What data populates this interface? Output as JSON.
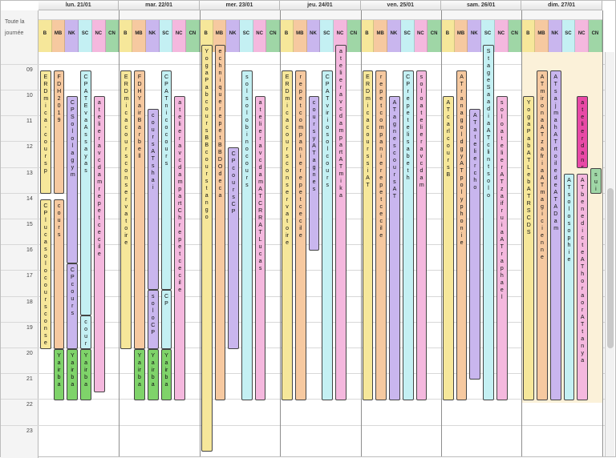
{
  "all_day_label": "Toute la journée",
  "days": [
    "lun. 21/01",
    "mar. 22/01",
    "mer. 23/01",
    "jeu. 24/01",
    "ven. 25/01",
    "sam. 26/01",
    "dim. 27/01"
  ],
  "columns": [
    "B",
    "MB",
    "NK",
    "SC",
    "NC",
    "CN"
  ],
  "column_colors": {
    "B": "#f6e79a",
    "MB": "#f6c9a0",
    "NK": "#c9b6ee",
    "SC": "#c4f0f3",
    "NC": "#f4b8de",
    "CN": "#9fd6a6"
  },
  "hours": [
    "09",
    "10",
    "11",
    "12",
    "13",
    "14",
    "15",
    "16",
    "17",
    "18",
    "19",
    "20",
    "21",
    "22",
    "23"
  ],
  "events": [
    {
      "day": 0,
      "col": 0,
      "start": 9.0,
      "end": 13.8,
      "label": "ERD mica - cours p",
      "color": "#f6e79a"
    },
    {
      "day": 0,
      "col": 1,
      "start": 9.0,
      "end": 13.8,
      "label": "FDH 2019",
      "color": "#f6c9a0"
    },
    {
      "day": 0,
      "col": 2,
      "start": 10.0,
      "end": 16.5,
      "label": "CP Solo la gym",
      "color": "#c9b6ee"
    },
    {
      "day": 0,
      "col": 3,
      "start": 9.0,
      "end": 18.5,
      "label": "CP AT Eva Assayas",
      "color": "#c4f0f3"
    },
    {
      "day": 0,
      "col": 4,
      "start": 10.0,
      "end": 21.5,
      "label": "atelier avc dam repet cecile",
      "color": "#f4b8de"
    },
    {
      "day": 0,
      "col": 0,
      "start": 14.0,
      "end": 19.8,
      "label": "CP luca solo cours conservatoire",
      "color": "#f6e79a"
    },
    {
      "day": 0,
      "col": 1,
      "start": 14.0,
      "end": 19.8,
      "label": "cours",
      "color": "#f6c9a0"
    },
    {
      "day": 0,
      "col": 2,
      "start": 16.5,
      "end": 19.8,
      "label": "CP cours",
      "color": "#c9b6ee"
    },
    {
      "day": 0,
      "col": 3,
      "start": 18.5,
      "end": 19.8,
      "label": "cours",
      "color": "#c4f0f3"
    },
    {
      "day": 0,
      "col": 1,
      "start": 19.8,
      "end": 21.8,
      "label": "Yair ba",
      "color": "#7fd36a"
    },
    {
      "day": 0,
      "col": 2,
      "start": 19.8,
      "end": 21.8,
      "label": "Yair ba",
      "color": "#7fd36a"
    },
    {
      "day": 0,
      "col": 3,
      "start": 19.8,
      "end": 21.8,
      "label": "Yair ba",
      "color": "#7fd36a"
    },
    {
      "day": 1,
      "col": 0,
      "start": 9.0,
      "end": 19.8,
      "label": "ERD mica cours conservatoire",
      "color": "#f6e79a"
    },
    {
      "day": 1,
      "col": 1,
      "start": 9.0,
      "end": 19.8,
      "label": "FDH Yair Barbell",
      "color": "#f6c9a0"
    },
    {
      "day": 1,
      "col": 2,
      "start": 10.5,
      "end": 17.5,
      "label": "cours AT shai",
      "color": "#c9b6ee"
    },
    {
      "day": 1,
      "col": 3,
      "start": 9.0,
      "end": 17.5,
      "label": "CP AT nico cours",
      "color": "#c4f0f3"
    },
    {
      "day": 1,
      "col": 4,
      "start": 10.0,
      "end": 21.8,
      "label": "atelier avc dam part Ch repet cecile",
      "color": "#f4b8de"
    },
    {
      "day": 1,
      "col": 2,
      "start": 17.5,
      "end": 19.8,
      "label": "solo CP",
      "color": "#c9b6ee"
    },
    {
      "day": 1,
      "col": 3,
      "start": 17.5,
      "end": 19.8,
      "label": "CP",
      "color": "#c4f0f3"
    },
    {
      "day": 1,
      "col": 1,
      "start": 19.8,
      "end": 21.8,
      "label": "Yair ba",
      "color": "#7fd36a"
    },
    {
      "day": 1,
      "col": 2,
      "start": 19.8,
      "end": 21.8,
      "label": "Yair ba",
      "color": "#7fd36a"
    },
    {
      "day": 1,
      "col": 3,
      "start": 19.8,
      "end": 21.8,
      "label": "Yair ba",
      "color": "#7fd36a"
    },
    {
      "day": 2,
      "col": 0,
      "start": 8.0,
      "end": 23.8,
      "label": "Yoga Pab cours BB cours tango",
      "color": "#f6e79a"
    },
    {
      "day": 2,
      "col": 1,
      "start": 8.0,
      "end": 21.8,
      "label": "echnique repet BBDO de ca",
      "color": "#f6c9a0"
    },
    {
      "day": 2,
      "col": 2,
      "start": 12.0,
      "end": 19.8,
      "label": "CP cours CP",
      "color": "#c9b6ee"
    },
    {
      "day": 2,
      "col": 3,
      "start": 9.0,
      "end": 21.8,
      "label": "sol solo bino cours",
      "color": "#c4f0f3"
    },
    {
      "day": 2,
      "col": 4,
      "start": 10.0,
      "end": 21.8,
      "label": "atelier avc dam AT CRR AT Lucas",
      "color": "#f4b8de"
    },
    {
      "day": 3,
      "col": 0,
      "start": 9.0,
      "end": 21.8,
      "label": "ERD mica cours conservatoire",
      "color": "#f6e79a"
    },
    {
      "day": 3,
      "col": 1,
      "start": 9.0,
      "end": 21.8,
      "label": "repet companie repet cecile",
      "color": "#f6c9a0"
    },
    {
      "day": 3,
      "col": 2,
      "start": 10.0,
      "end": 16.0,
      "label": "cours y AT agnes",
      "color": "#c9b6ee"
    },
    {
      "day": 3,
      "col": 3,
      "start": 9.0,
      "end": 21.8,
      "label": "CP AT virio sol cours",
      "color": "#c4f0f3"
    },
    {
      "day": 3,
      "col": 4,
      "start": 8.0,
      "end": 21.8,
      "label": "atelier avc dam part AT mika",
      "color": "#f4b8de"
    },
    {
      "day": 4,
      "col": 0,
      "start": 9.0,
      "end": 21.8,
      "label": "ERD mica cours si AT",
      "color": "#f6e79a"
    },
    {
      "day": 4,
      "col": 1,
      "start": 9.0,
      "end": 21.8,
      "label": "repet companie repet cecile",
      "color": "#f6c9a0"
    },
    {
      "day": 4,
      "col": 2,
      "start": 10.0,
      "end": 21.8,
      "label": "AT agnes cours AT",
      "color": "#c9b6ee"
    },
    {
      "day": 4,
      "col": 3,
      "start": 9.0,
      "end": 21.8,
      "label": "CP repet elisabeth",
      "color": "#c4f0f3"
    },
    {
      "day": 4,
      "col": 4,
      "start": 9.0,
      "end": 21.8,
      "label": "solo atelier avc dam",
      "color": "#f4b8de"
    },
    {
      "day": 5,
      "col": 0,
      "start": 10.0,
      "end": 21.8,
      "label": "AT carl cours B",
      "color": "#f6e79a"
    },
    {
      "day": 5,
      "col": 1,
      "start": 9.0,
      "end": 21.8,
      "label": "AT rana goldgy AT polyphonie",
      "color": "#f6c9a0"
    },
    {
      "day": 5,
      "col": 2,
      "start": 10.5,
      "end": 21.0,
      "label": "AT atelier cho",
      "color": "#c9b6ee"
    },
    {
      "day": 5,
      "col": 3,
      "start": 8.0,
      "end": 21.8,
      "label": "Stage Saadia AT clint solo",
      "color": "#c4f0f3"
    },
    {
      "day": 5,
      "col": 4,
      "start": 10.0,
      "end": 21.8,
      "label": "solo atelier AT zaifruia AT raphael",
      "color": "#f4b8de"
    },
    {
      "day": 6,
      "col": 0,
      "start": 10.0,
      "end": 21.8,
      "label": "Yoga Pab AT Leb AT RSCDS",
      "color": "#f6e79a"
    },
    {
      "day": 6,
      "col": 1,
      "start": 9.0,
      "end": 21.8,
      "label": "AT mirona AT zafria AT magicienne",
      "color": "#f6c9a0"
    },
    {
      "day": 6,
      "col": 2,
      "start": 9.0,
      "end": 21.8,
      "label": "AT sajmah AT rtoile de AT ADam",
      "color": "#c9b6ee"
    },
    {
      "day": 6,
      "col": 4,
      "start": 10.0,
      "end": 12.8,
      "label": "atelier dans",
      "color": "#e84aa6"
    },
    {
      "day": 6,
      "col": 4,
      "start": 13.0,
      "end": 21.8,
      "label": "AT benedicte AT horaor AT tanya",
      "color": "#f4b8de"
    },
    {
      "day": 6,
      "col": 5,
      "start": 12.8,
      "end": 13.8,
      "label": "sui",
      "color": "#9fd6a6"
    },
    {
      "day": 6,
      "col": 3,
      "start": 13.0,
      "end": 21.8,
      "label": "AT solo sophie",
      "color": "#c4f0f3"
    }
  ]
}
